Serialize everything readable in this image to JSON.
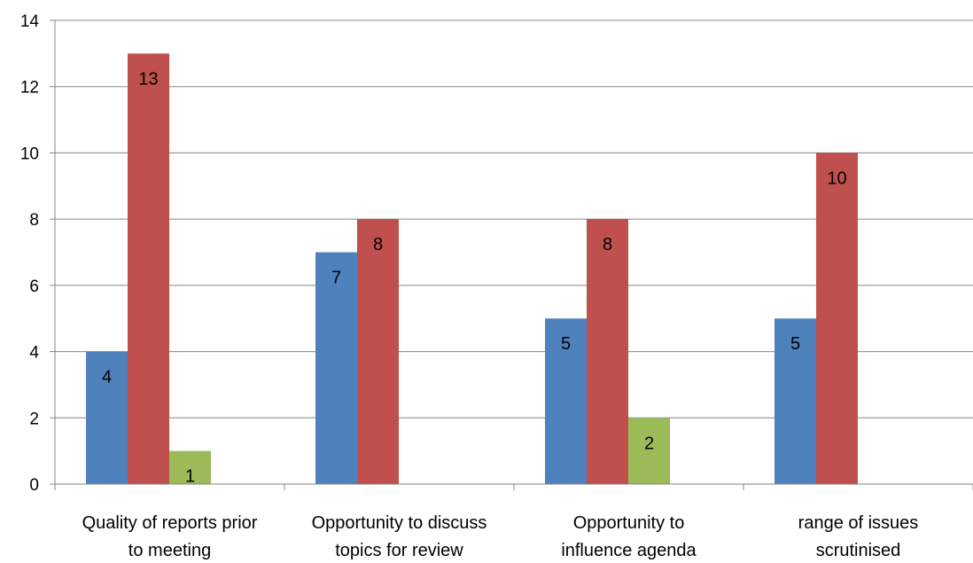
{
  "chart_data": {
    "type": "bar",
    "categories": [
      [
        "Quality of reports prior",
        "to meeting"
      ],
      [
        "Opportunity to discuss",
        "topics for review"
      ],
      [
        "Opportunity to",
        "influence agenda"
      ],
      [
        "range of issues",
        "scrutinised"
      ]
    ],
    "series": [
      {
        "values": [
          4,
          7,
          5,
          5
        ],
        "color": "#4F81BD"
      },
      {
        "values": [
          13,
          8,
          8,
          10
        ],
        "color": "#C0504D"
      },
      {
        "values": [
          1,
          null,
          2,
          null
        ],
        "color": "#9BBB59"
      }
    ],
    "ylim": [
      0,
      14
    ],
    "yticks": [
      "0",
      "2",
      "4",
      "6",
      "8",
      "10",
      "12",
      "14"
    ],
    "grid": true,
    "legend": "none",
    "gridline_color": "#868686",
    "axis_color": "#868686"
  }
}
